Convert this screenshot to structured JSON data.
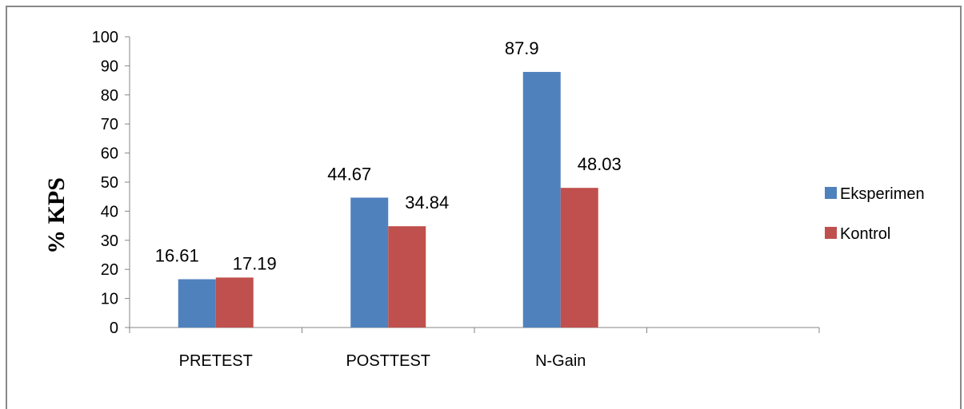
{
  "chart_data": {
    "type": "bar",
    "title": "",
    "xlabel": "",
    "ylabel": "% KPS",
    "ylim": [
      0,
      100
    ],
    "yticks": [
      0,
      10,
      20,
      30,
      40,
      50,
      60,
      70,
      80,
      90,
      100
    ],
    "categories": [
      "PRETEST",
      "POSTTEST",
      "N-Gain",
      ""
    ],
    "series": [
      {
        "name": "Eksperimen",
        "color": "#4f81bd",
        "values": [
          16.61,
          44.67,
          87.9,
          null
        ],
        "labels": [
          "16.61",
          "44.67",
          "87.9",
          ""
        ]
      },
      {
        "name": "Kontrol",
        "color": "#c0504d",
        "values": [
          17.19,
          34.84,
          48.03,
          null
        ],
        "labels": [
          "17.19",
          "34.84",
          "48.03",
          ""
        ]
      }
    ],
    "grid": false,
    "legend": "right"
  }
}
